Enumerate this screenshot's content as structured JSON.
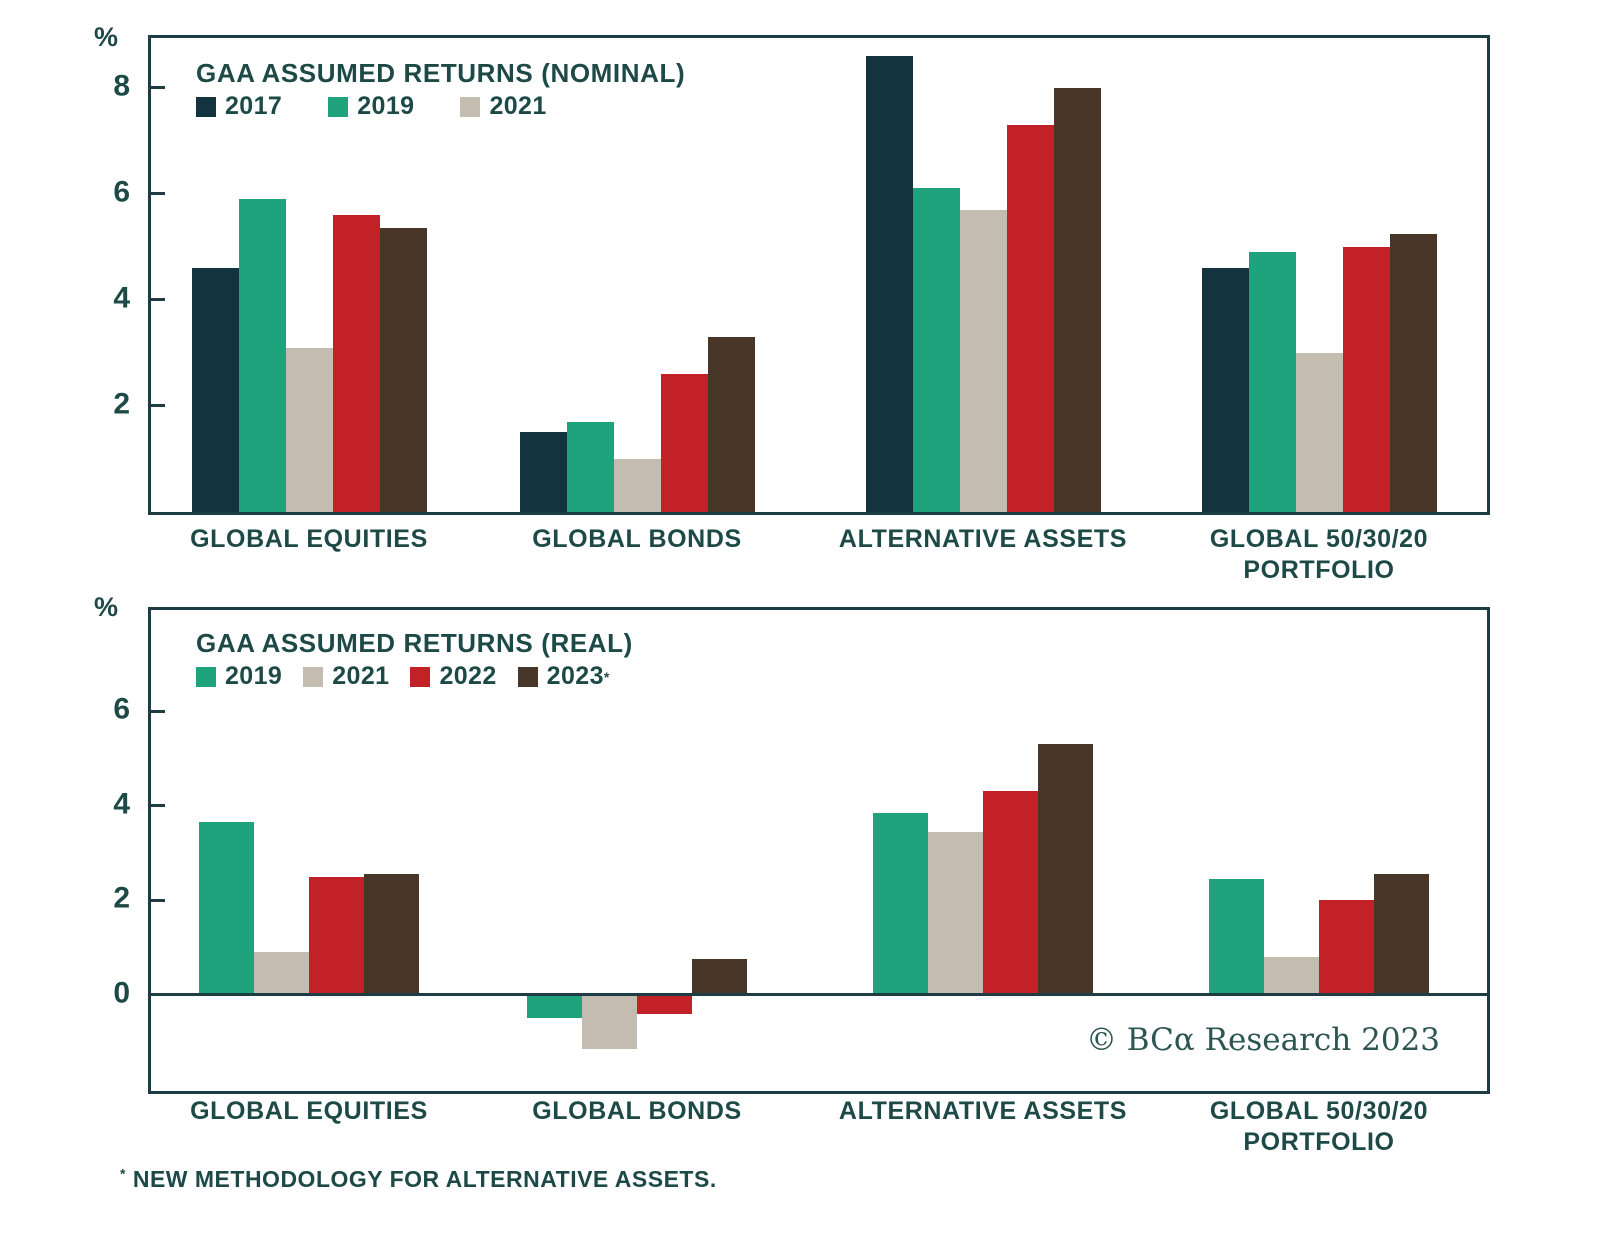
{
  "figure": {
    "footnote_marker": "*",
    "footnote_text": "NEW METHODOLOGY FOR ALTERNATIVE ASSETS.",
    "copyright": "© BCα Research 2023"
  },
  "colors": {
    "year_2017": "#13343f",
    "year_2019": "#1fa37c",
    "year_2021": "#c4bbb1",
    "year_2022": "#c22127",
    "year_2023": "#483628",
    "frame": "#1d3c43",
    "text": "#1d4a47"
  },
  "chart_data": [
    {
      "type": "bar",
      "title": "GAA ASSUMED RETURNS (NOMINAL)",
      "unit": "%",
      "categories": [
        "GLOBAL EQUITIES",
        "GLOBAL BONDS",
        "ALTERNATIVE ASSETS",
        "GLOBAL 50/30/20\nPORTFOLIO"
      ],
      "series": [
        {
          "name": "2017",
          "color": "#13343f",
          "values": [
            4.6,
            1.5,
            8.6,
            4.6
          ]
        },
        {
          "name": "2019",
          "color": "#1fa37c",
          "values": [
            5.9,
            1.7,
            6.1,
            4.9
          ]
        },
        {
          "name": "2021",
          "color": "#c4bbb1",
          "values": [
            3.1,
            1.0,
            5.7,
            3.0
          ]
        },
        {
          "name": "2022",
          "color": "#c22127",
          "values": [
            5.6,
            2.6,
            7.3,
            5.0
          ]
        },
        {
          "name": "2023",
          "color": "#483628",
          "values": [
            5.35,
            3.3,
            8.0,
            5.25
          ]
        }
      ],
      "legend": [
        {
          "label": "2017",
          "color": "#13343f"
        },
        {
          "label": "2019",
          "color": "#1fa37c"
        },
        {
          "label": "2021",
          "color": "#c4bbb1"
        }
      ],
      "legend_position": "top-left-inside",
      "yticks": [
        2,
        4,
        6,
        8
      ],
      "ylim": [
        0,
        9.05
      ],
      "grid": false
    },
    {
      "type": "bar",
      "title": "GAA ASSUMED RETURNS (REAL)",
      "unit": "%",
      "categories": [
        "GLOBAL EQUITIES",
        "GLOBAL BONDS",
        "ALTERNATIVE ASSETS",
        "GLOBAL 50/30/20\nPORTFOLIO"
      ],
      "series": [
        {
          "name": "2019",
          "color": "#1fa37c",
          "values": [
            3.65,
            -0.5,
            3.85,
            2.45
          ]
        },
        {
          "name": "2021",
          "color": "#c4bbb1",
          "values": [
            0.9,
            -1.15,
            3.45,
            0.8
          ]
        },
        {
          "name": "2022",
          "color": "#c22127",
          "values": [
            2.5,
            -0.4,
            4.3,
            2.0
          ]
        },
        {
          "name": "2023",
          "color": "#483628",
          "values": [
            2.55,
            0.75,
            5.3,
            2.55
          ]
        }
      ],
      "legend": [
        {
          "label": "2019",
          "color": "#1fa37c"
        },
        {
          "label": "2021",
          "color": "#c4bbb1"
        },
        {
          "label": "2022",
          "color": "#c22127"
        },
        {
          "label": "2023",
          "color": "#483628",
          "sup": "*"
        }
      ],
      "legend_position": "top-left-inside",
      "yticks": [
        0,
        2,
        4,
        6
      ],
      "ylim": [
        -2.1,
        8.2
      ],
      "grid": false
    }
  ]
}
